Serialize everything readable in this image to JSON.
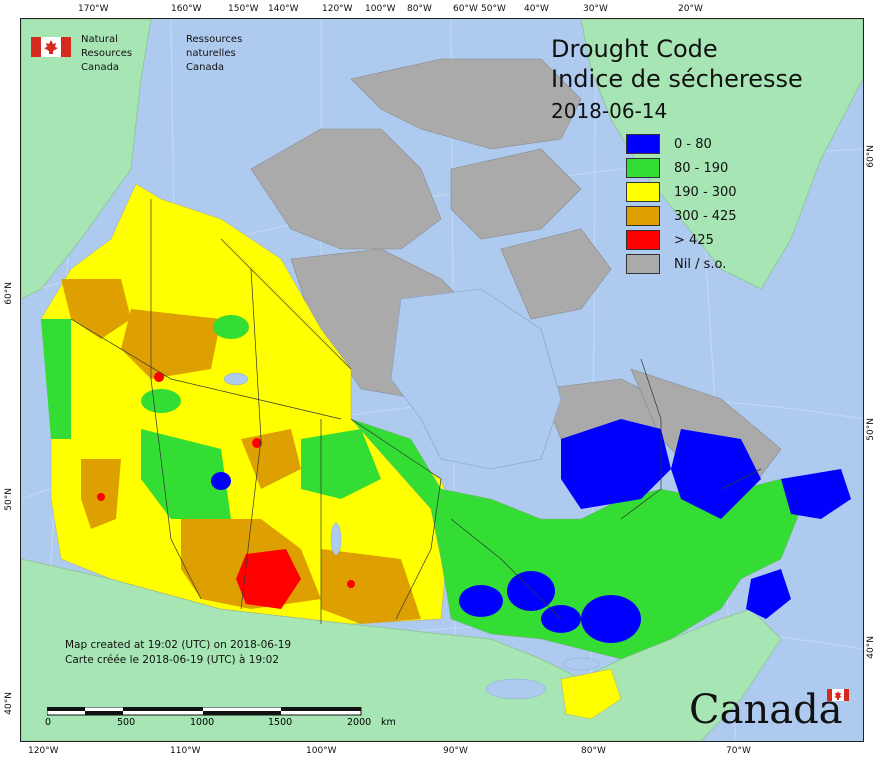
{
  "title": {
    "line1": "Drought Code",
    "line2": "Indice de sécheresse",
    "date": "2018-06-14"
  },
  "agency": {
    "en_line1": "Natural Resources",
    "en_line2": "Canada",
    "fr_line1": "Ressources naturelles",
    "fr_line2": "Canada"
  },
  "legend": [
    {
      "label": "0 - 80",
      "color": "#0000ff"
    },
    {
      "label": "80 - 190",
      "color": "#33dd33"
    },
    {
      "label": "190 - 300",
      "color": "#ffff00"
    },
    {
      "label": "300 - 425",
      "color": "#dda000"
    },
    {
      "label": "> 425",
      "color": "#ff0000"
    },
    {
      "label": "Nil / s.o.",
      "color": "#aaaaaa"
    }
  ],
  "colors": {
    "ocean": "#aecbef",
    "foreign_land": "#a7e6b4",
    "no_data": "#aaaaaa"
  },
  "notes": {
    "en": "Map created at 19:02 (UTC) on 2018-06-19",
    "fr": "Carte créée le 2018-06-19 (UTC) à 19:02"
  },
  "scale_bar": {
    "ticks": [
      "0",
      "500",
      "1000",
      "1500",
      "2000"
    ],
    "unit": "km"
  },
  "wordmark": "Canada",
  "graticule": {
    "top": [
      "170°W",
      "160°W",
      "150°W",
      "140°W",
      "120°W",
      "100°W",
      "80°W",
      "60°W",
      "50°W",
      "40°W",
      "30°W",
      "20°W"
    ],
    "bottom": [
      "120°W",
      "110°W",
      "100°W",
      "90°W",
      "80°W",
      "70°W"
    ],
    "left": [
      "60°N",
      "50°N",
      "40°N"
    ],
    "right": [
      "60°N",
      "50°N",
      "40°N"
    ]
  }
}
